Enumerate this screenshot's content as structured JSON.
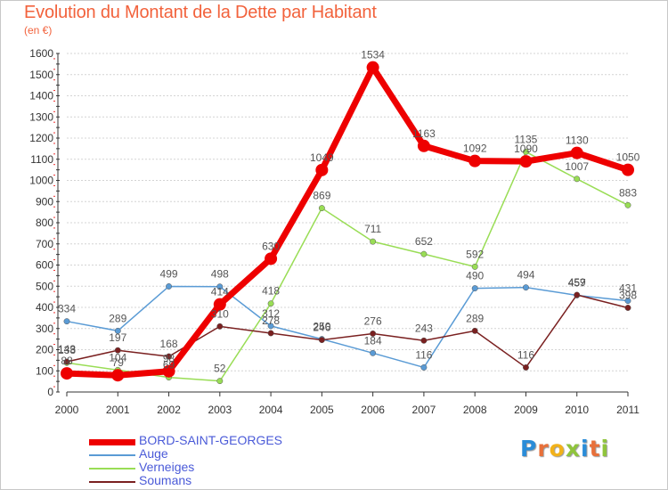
{
  "chart_data": {
    "type": "line",
    "title": "Evolution du Montant de la Dette par Habitant",
    "subtitle": "(en €)",
    "x": [
      2000,
      2001,
      2002,
      2003,
      2004,
      2005,
      2006,
      2007,
      2008,
      2009,
      2010,
      2011
    ],
    "ylim": [
      0,
      1600
    ],
    "yticks": [
      0,
      100,
      200,
      300,
      400,
      500,
      600,
      700,
      800,
      900,
      1000,
      1100,
      1200,
      1300,
      1400,
      1500,
      1600
    ],
    "grid": "horizontal",
    "series": [
      {
        "name": "BORD-SAINT-GEORGES",
        "color": "#ee0000",
        "values": [
          88,
          79,
          98,
          414,
          630,
          1049,
          1534,
          1163,
          1092,
          1090,
          1130,
          1050
        ],
        "labels": [
          "88",
          "79",
          "98",
          "414",
          "630",
          "1049",
          "1534",
          "1163",
          "1092",
          "1090",
          "1130",
          "1050"
        ]
      },
      {
        "name": "Auge",
        "color": "#5a9bd5",
        "values": [
          334,
          289,
          499,
          498,
          312,
          250,
          184,
          116,
          490,
          494,
          457,
          431
        ],
        "labels": [
          "334",
          "289",
          "499",
          "498",
          "312",
          "250",
          "184",
          "116",
          "490",
          "494",
          "457",
          "431"
        ]
      },
      {
        "name": "Verneiges",
        "color": "#99dd55",
        "values": [
          138,
          104,
          69,
          52,
          418,
          869,
          711,
          652,
          592,
          1135,
          1007,
          883
        ],
        "labels": [
          "138",
          "104",
          "69",
          "52",
          "418",
          "869",
          "711",
          "652",
          "592",
          "1135",
          "1007",
          "883"
        ]
      },
      {
        "name": "Soumans",
        "color": "#7a2020",
        "values": [
          143,
          197,
          168,
          310,
          278,
          246,
          276,
          243,
          289,
          116,
          459,
          398
        ],
        "labels": [
          "143",
          "197",
          "168",
          "310",
          "278",
          "246",
          "276",
          "243",
          "289",
          "116",
          "459",
          "398"
        ]
      }
    ]
  },
  "logo": {
    "letters": [
      "P",
      "r",
      "o",
      "x",
      "i",
      "t",
      "i"
    ],
    "colors": [
      "#2a8cd8",
      "#e8703a",
      "#f2b21a",
      "#8fc43c",
      "#2a8cd8",
      "#e8703a",
      "#8fc43c"
    ]
  }
}
